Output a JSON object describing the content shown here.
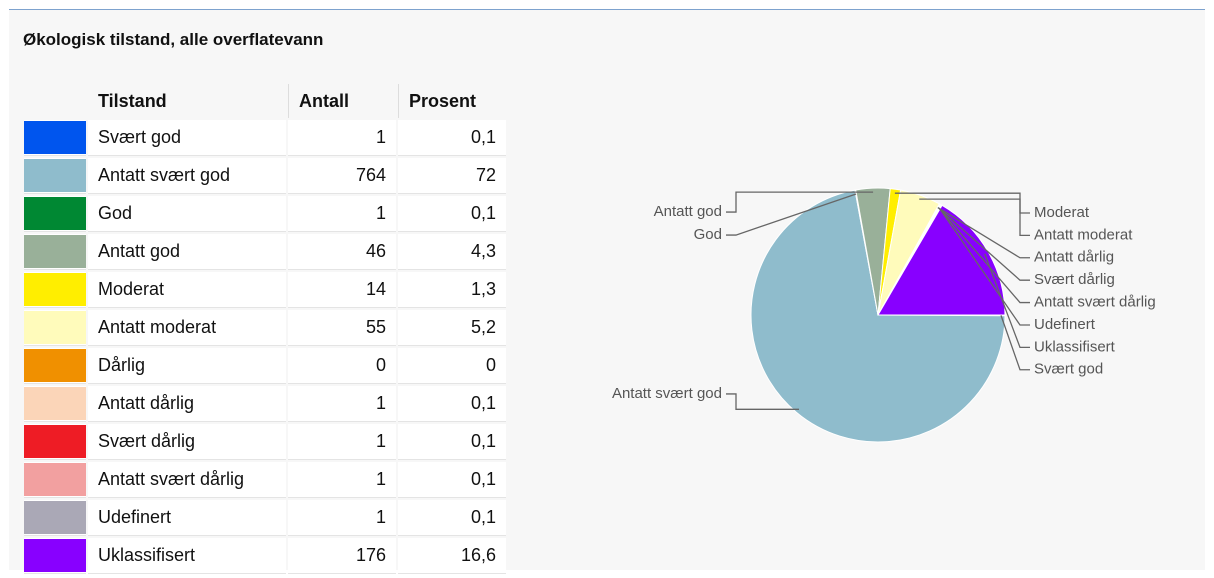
{
  "chart_data": {
    "type": "pie",
    "title": "Økologisk tilstand, alle overflatevann",
    "columns": [
      "Tilstand",
      "Antall",
      "Prosent"
    ],
    "categories": [
      "Svært god",
      "Antatt svært god",
      "God",
      "Antatt god",
      "Moderat",
      "Antatt moderat",
      "Dårlig",
      "Antatt dårlig",
      "Svært dårlig",
      "Antatt svært dårlig",
      "Udefinert",
      "Uklassifisert"
    ],
    "values": [
      1,
      764,
      1,
      46,
      14,
      55,
      0,
      1,
      1,
      1,
      1,
      176
    ],
    "percent": [
      "0,1",
      "72",
      "0,1",
      "4,3",
      "1,3",
      "5,2",
      "0",
      "0,1",
      "0,1",
      "0,1",
      "0,1",
      "16,6"
    ],
    "colors": [
      "#0055ee",
      "#8fbccc",
      "#008833",
      "#99b099",
      "#ffee00",
      "#fffbbb",
      "#f09000",
      "#fbd5b8",
      "#ee1c25",
      "#f2a0a0",
      "#aaa8b6",
      "#8800ff"
    ]
  }
}
